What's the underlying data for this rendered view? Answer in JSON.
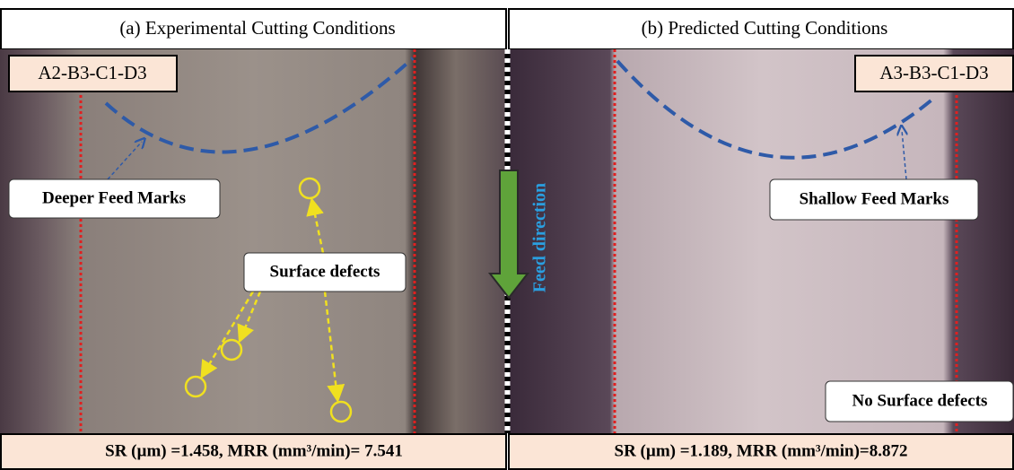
{
  "panels": [
    {
      "title": "(a) Experimental Cutting Conditions",
      "code": "A2-B3-C1-D3",
      "annotations": [
        "Deeper Feed Marks",
        "Surface defects"
      ],
      "caption": "SR (µm) =1.458, MRR (mm³/min)= 7.541"
    },
    {
      "title": "(b) Predicted Cutting Conditions",
      "code": "A3-B3-C1-D3",
      "annotations": [
        "Shallow Feed Marks",
        "No Surface defects"
      ],
      "caption": "SR (µm) =1.189, MRR (mm³/min)=8.872"
    }
  ],
  "feed_label": "Feed direction"
}
